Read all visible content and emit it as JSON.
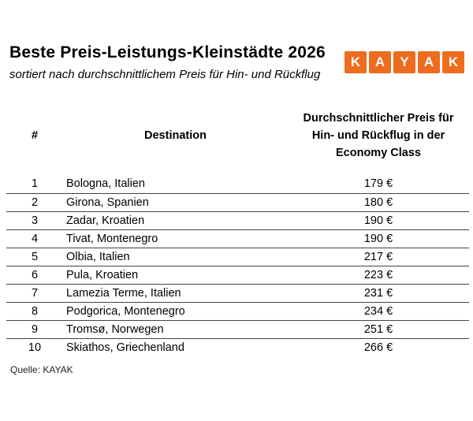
{
  "colors": {
    "brand_orange": "#EE6C1E",
    "text": "#000000",
    "line": "#444444"
  },
  "logo": {
    "letters": [
      "K",
      "A",
      "Y",
      "A",
      "K"
    ]
  },
  "title": "Beste Preis-Leistungs-Kleinstädte 2026",
  "subtitle": "sortiert nach durchschnittlichem Preis für Hin- und Rückflug",
  "table": {
    "headers": {
      "rank": "#",
      "destination": "Destination",
      "price": "Durchschnittlicher Preis für\nHin- und Rückflug in der\nEconomy Class"
    },
    "rows": [
      {
        "rank": "1",
        "destination": "Bologna, Italien",
        "price": "179 €"
      },
      {
        "rank": "2",
        "destination": "Girona, Spanien",
        "price": "180 €"
      },
      {
        "rank": "3",
        "destination": "Zadar, Kroatien",
        "price": "190 €"
      },
      {
        "rank": "4",
        "destination": "Tivat, Montenegro",
        "price": "190 €"
      },
      {
        "rank": "5",
        "destination": "Olbia, Italien",
        "price": "217 €"
      },
      {
        "rank": "6",
        "destination": "Pula, Kroatien",
        "price": "223 €"
      },
      {
        "rank": "7",
        "destination": "Lamezia Terme, Italien",
        "price": "231 €"
      },
      {
        "rank": "8",
        "destination": "Podgorica, Montenegro",
        "price": "234 €"
      },
      {
        "rank": "9",
        "destination": "Tromsø, Norwegen",
        "price": "251 €"
      },
      {
        "rank": "10",
        "destination": "Skiathos, Griechenland",
        "price": "266 €"
      }
    ]
  },
  "source": "Quelle: KAYAK"
}
